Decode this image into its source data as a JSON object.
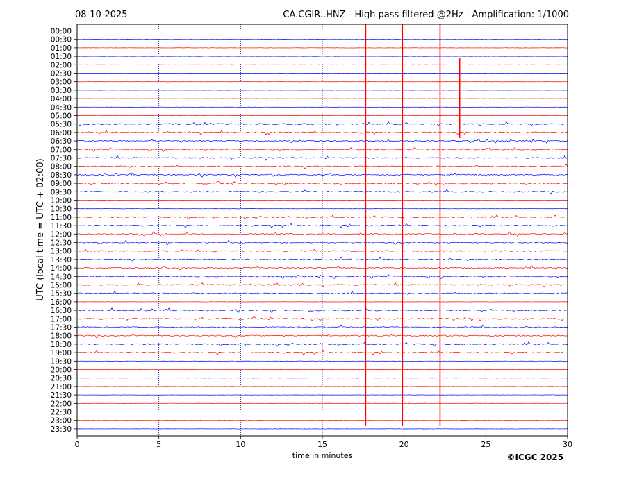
{
  "header": {
    "date": "08-10-2025",
    "title": "CA.CGIR..HNZ - High pass filtered @2Hz - Amplification: 1/1000"
  },
  "footer": {
    "copyright": "©ICGC 2025"
  },
  "colors": {
    "trace_a": "#ff0000",
    "trace_b": "#0000ff",
    "frame": "#000000"
  },
  "chart_data": {
    "type": "line",
    "title": "CA.CGIR..HNZ - High pass filtered @2Hz - Amplification: 1/1000",
    "xlabel": "time in minutes",
    "ylabel": "UTC (local time = UTC + 02:00)",
    "xlim": [
      0,
      30
    ],
    "x_ticks": [
      0,
      5,
      10,
      15,
      20,
      25,
      30
    ],
    "x_gridlines": [
      5,
      10,
      15,
      20,
      25
    ],
    "y_labels": [
      "00:00",
      "00:30",
      "01:00",
      "01:30",
      "02:00",
      "02:30",
      "03:00",
      "03:30",
      "04:00",
      "04:30",
      "05:00",
      "05:30",
      "06:00",
      "06:30",
      "07:00",
      "07:30",
      "08:00",
      "08:30",
      "09:00",
      "09:30",
      "10:00",
      "10:30",
      "11:00",
      "11:30",
      "12:00",
      "12:30",
      "13:00",
      "13:30",
      "14:00",
      "14:30",
      "15:00",
      "15:30",
      "16:00",
      "16:30",
      "17:00",
      "17:30",
      "18:00",
      "18:30",
      "19:00",
      "19:30",
      "20:00",
      "20:30",
      "21:00",
      "21:30",
      "22:00",
      "22:30",
      "23:00",
      "23:30"
    ],
    "trace_color_cycle": [
      "red",
      "blue"
    ],
    "large_events": [
      {
        "minute": 17.65,
        "from_row": "00:00",
        "to_row": "23:00"
      },
      {
        "minute": 19.9,
        "from_row": "00:00",
        "to_row": "23:00"
      },
      {
        "minute": 22.2,
        "from_row": "00:00",
        "to_row": "23:00"
      },
      {
        "minute": 23.4,
        "from_row": "02:00",
        "to_row": "06:00"
      }
    ],
    "noisy_rows": [
      "05:30",
      "06:00",
      "06:30",
      "07:00",
      "07:30",
      "08:00",
      "08:30",
      "09:00",
      "09:30",
      "11:00",
      "11:30",
      "12:00",
      "12:30",
      "13:00",
      "13:30",
      "14:00",
      "14:30",
      "15:00",
      "15:30",
      "16:30",
      "17:00",
      "17:30",
      "18:00",
      "18:30",
      "19:00"
    ],
    "grid": true
  }
}
